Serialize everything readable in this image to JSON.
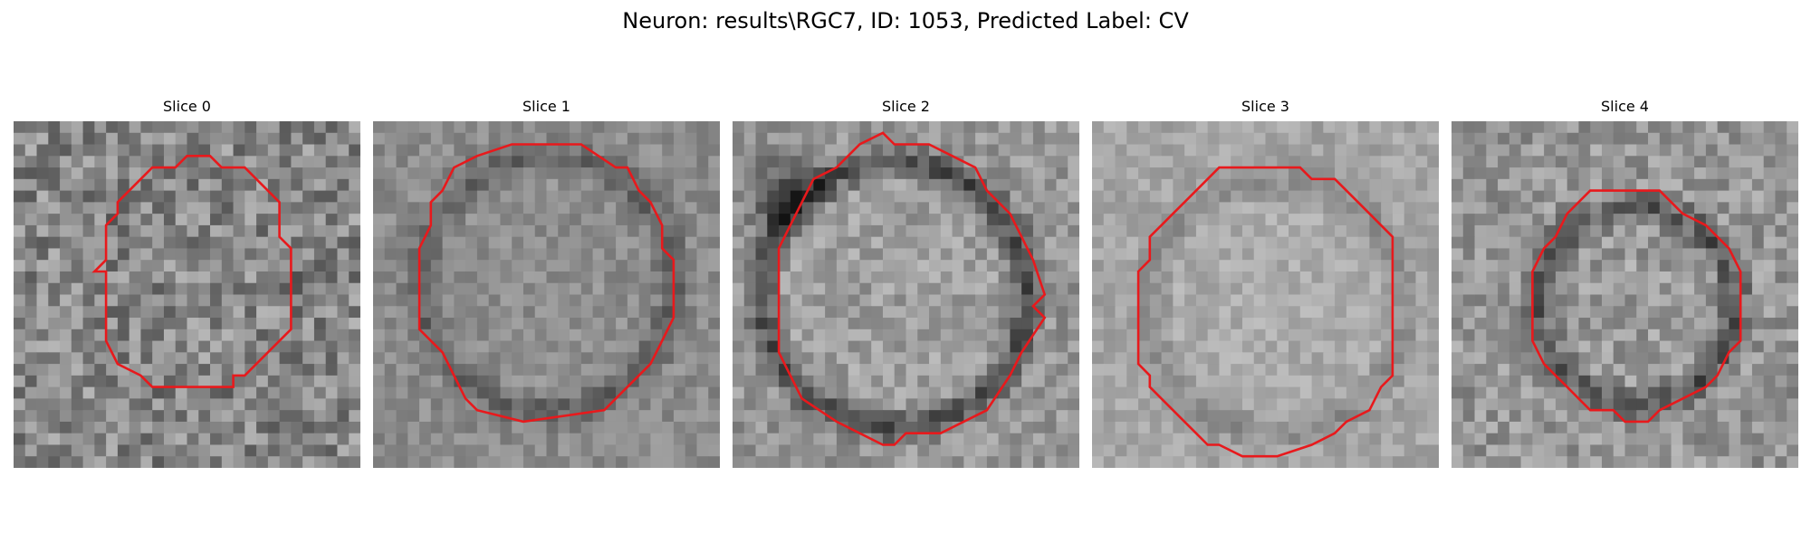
{
  "figure": {
    "title": "Neuron: results\\RGC7, ID: 1053, Predicted Label: CV"
  },
  "panels": [
    {
      "title": "Slice 0"
    },
    {
      "title": "Slice 1"
    },
    {
      "title": "Slice 2"
    },
    {
      "title": "Slice 3"
    },
    {
      "title": "Slice 4"
    }
  ],
  "colors": {
    "contour": "#e8191c",
    "background": "#ffffff"
  }
}
